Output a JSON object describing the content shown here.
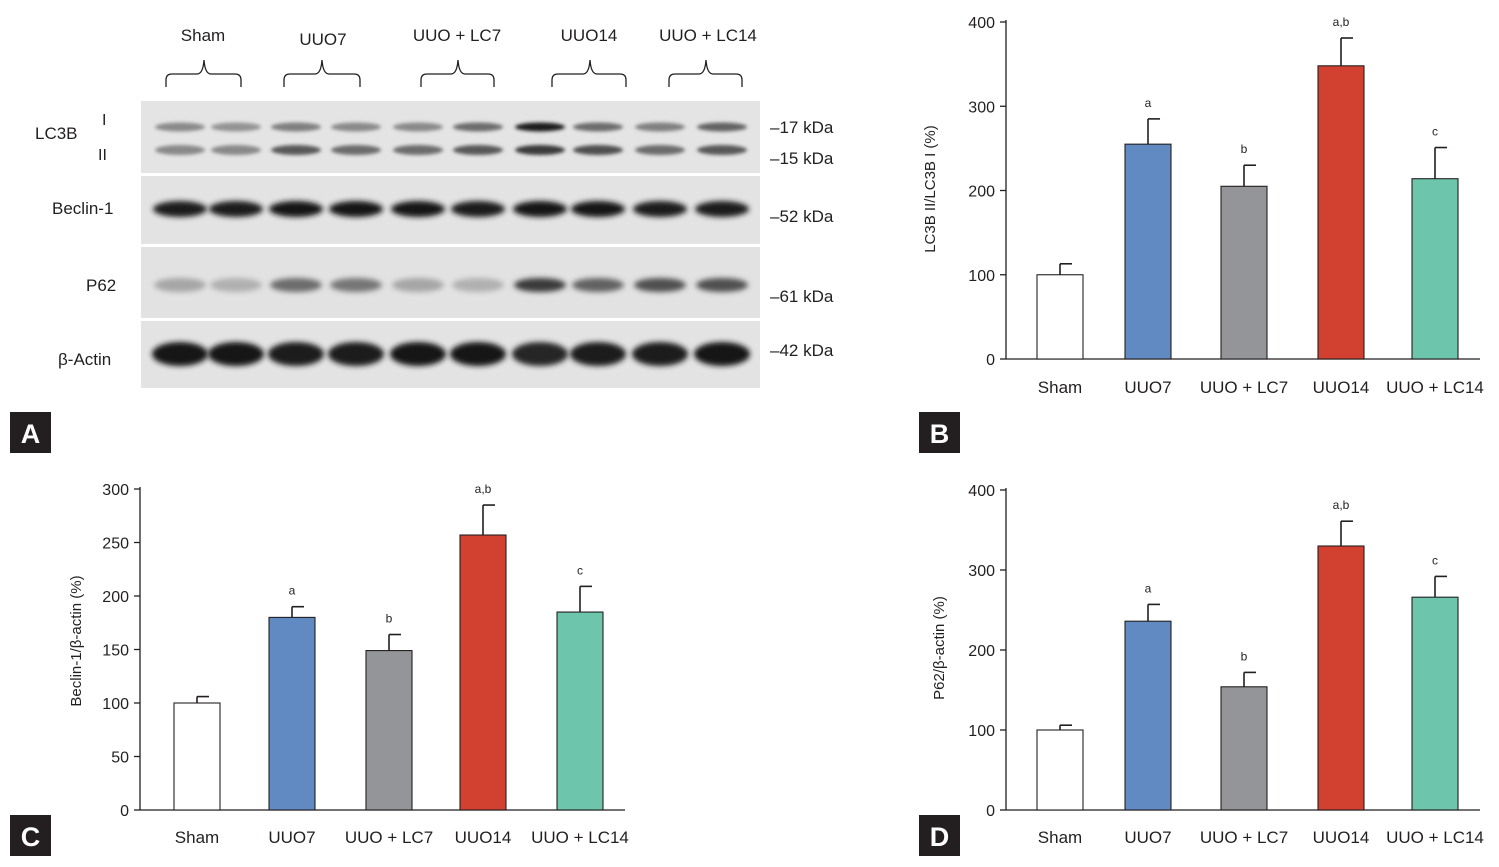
{
  "panel_a": {
    "groups": [
      "Sham",
      "UUO7",
      "UUO + LC7",
      "UUO14",
      "UUO + LC14"
    ],
    "rows": [
      {
        "label": "LC3B",
        "sublabels": [
          "I",
          "II"
        ],
        "markers": [
          "17 kDa",
          "15 kDa"
        ]
      },
      {
        "label": "Beclin-1",
        "markers": [
          "52 kDa"
        ]
      },
      {
        "label": "P62",
        "markers": [
          "61 kDa"
        ]
      },
      {
        "label": "β-Actin",
        "markers": [
          "42 kDa"
        ]
      }
    ],
    "band_intensity": {
      "lc3b_i": [
        0.4,
        0.35,
        0.45,
        0.4,
        0.4,
        0.55,
        0.95,
        0.55,
        0.45,
        0.6
      ],
      "lc3b_ii": [
        0.4,
        0.4,
        0.65,
        0.55,
        0.55,
        0.65,
        0.8,
        0.7,
        0.55,
        0.65
      ],
      "beclin1": [
        0.95,
        0.95,
        1.0,
        1.0,
        1.0,
        0.95,
        1.0,
        1.0,
        0.95,
        0.95
      ],
      "p62": [
        0.25,
        0.2,
        0.55,
        0.5,
        0.25,
        0.2,
        0.8,
        0.6,
        0.7,
        0.7
      ],
      "actin": [
        1.0,
        1.0,
        0.95,
        0.95,
        1.0,
        1.0,
        0.9,
        0.95,
        0.95,
        1.0
      ]
    }
  },
  "panel_labels": [
    "A",
    "B",
    "C",
    "D"
  ],
  "chart_data": [
    {
      "type": "bar",
      "panel": "B",
      "categories": [
        "Sham",
        "UUO7",
        "UUO + LC7",
        "UUO14",
        "UUO + LC14"
      ],
      "values": [
        100,
        255,
        205,
        348,
        214
      ],
      "errors": [
        13,
        30,
        25,
        33,
        37
      ],
      "significance": [
        "",
        "a",
        "b",
        "a,b",
        "c"
      ],
      "colors": [
        "#ffffff",
        "#628ac2",
        "#939598",
        "#d2402f",
        "#6dc5ab"
      ],
      "ylabel": "LC3B II/LC3B I (%)",
      "ylim": [
        0,
        400
      ],
      "yticks": [
        0,
        100,
        200,
        300,
        400
      ]
    },
    {
      "type": "bar",
      "panel": "C",
      "categories": [
        "Sham",
        "UUO7",
        "UUO + LC7",
        "UUO14",
        "UUO + LC14"
      ],
      "values": [
        100,
        180,
        149,
        257,
        185
      ],
      "errors": [
        6,
        10,
        15,
        28,
        24
      ],
      "significance": [
        "",
        "a",
        "b",
        "a,b",
        "c"
      ],
      "colors": [
        "#ffffff",
        "#628ac2",
        "#939598",
        "#d2402f",
        "#6dc5ab"
      ],
      "ylabel": "Beclin-1/β-actin (%)",
      "ylim": [
        0,
        300
      ],
      "yticks": [
        0,
        50,
        100,
        150,
        200,
        250,
        300
      ]
    },
    {
      "type": "bar",
      "panel": "D",
      "categories": [
        "Sham",
        "UUO7",
        "UUO + LC7",
        "UUO14",
        "UUO + LC14"
      ],
      "values": [
        100,
        236,
        154,
        330,
        266
      ],
      "errors": [
        6,
        21,
        18,
        31,
        26
      ],
      "significance": [
        "",
        "a",
        "b",
        "a,b",
        "c"
      ],
      "colors": [
        "#ffffff",
        "#628ac2",
        "#939598",
        "#d2402f",
        "#6dc5ab"
      ],
      "ylabel": "P62/β-actin (%)",
      "ylim": [
        0,
        400
      ],
      "yticks": [
        0,
        100,
        200,
        300,
        400
      ]
    }
  ]
}
